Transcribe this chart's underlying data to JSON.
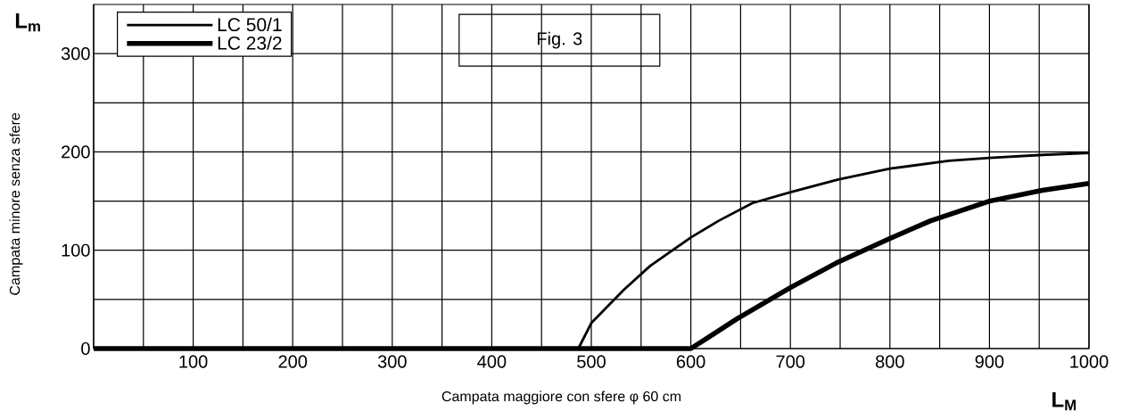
{
  "chart_data": {
    "type": "line",
    "xlabel": "Campata maggiore con sfere φ 60 cm",
    "ylabel": "Campata minore senza sfere",
    "annotations": [
      "Fig. 3",
      "L$_{m}$",
      "L$_{M}$"
    ],
    "xlim": [
      0,
      1000
    ],
    "ylim": [
      0,
      350
    ],
    "xticks": [
      {
        "value": 0,
        "label": null
      },
      {
        "value": 50,
        "label": null
      },
      100,
      {
        "value": 150,
        "label": null
      },
      200,
      {
        "value": 250,
        "label": null
      },
      300,
      {
        "value": 350,
        "label": null
      },
      400,
      {
        "value": 450,
        "label": null
      },
      500,
      {
        "value": 550,
        "label": null
      },
      600,
      {
        "value": 650,
        "label": null
      },
      700,
      {
        "value": 750,
        "label": null
      },
      800,
      {
        "value": 850,
        "label": null
      },
      900,
      {
        "value": 950,
        "label": null
      },
      1000
    ],
    "yticks": [
      0,
      {
        "value": 50,
        "label": null
      },
      100,
      {
        "value": 150,
        "label": null
      },
      200,
      {
        "value": 250,
        "label": null
      },
      300
    ],
    "grid": true,
    "legend": "top left",
    "series": [
      {
        "name": "LC 50/1",
        "color": "#000000",
        "x": [
          487,
          500,
          533,
          559,
          600,
          628,
          662,
          700,
          748,
          800,
          859,
          900,
          953,
          1000
        ],
        "values": [
          0,
          26,
          60,
          84,
          113,
          130,
          148,
          159,
          172,
          183,
          191,
          194,
          197,
          199
        ]
      },
      {
        "name": "LC 23/2",
        "color": "#000000",
        "x": [
          0,
          600,
          617,
          646,
          700,
          746,
          800,
          841,
          900,
          953,
          1000
        ],
        "values": [
          0,
          0,
          11,
          30,
          62,
          87,
          112,
          130,
          150,
          161,
          168
        ]
      }
    ]
  }
}
